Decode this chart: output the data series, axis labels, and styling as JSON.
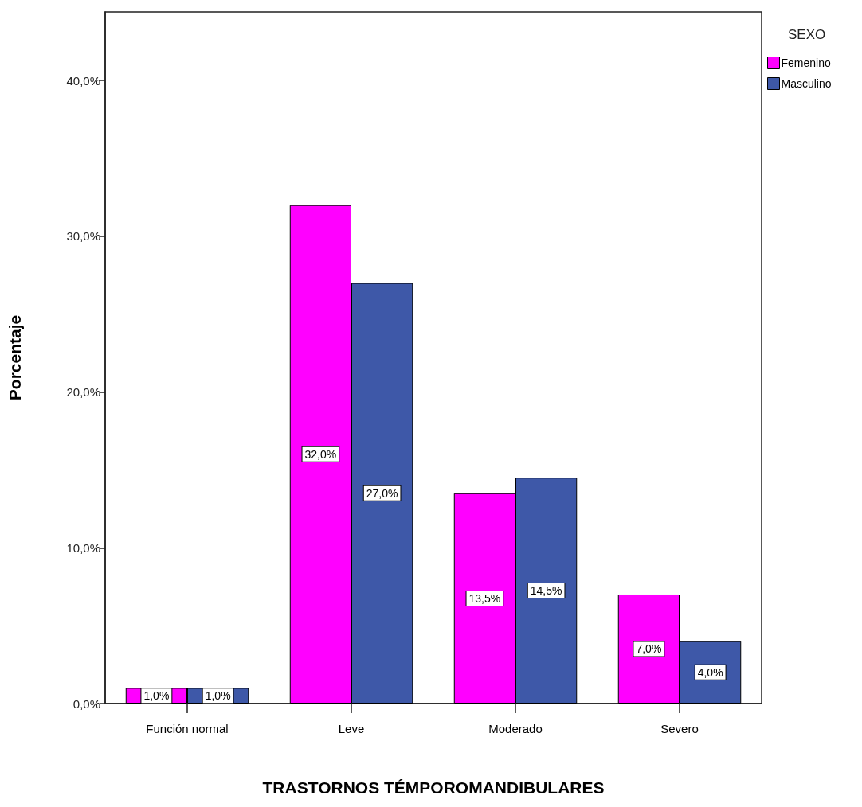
{
  "chart_data": {
    "type": "bar",
    "xlabel": "TRASTORNOS TÉMPOROMANDIBULARES",
    "ylabel": "Porcentaje",
    "legend_title": "SEXO",
    "legend": "top right",
    "categories": [
      "Función normal",
      "Leve",
      "Moderado",
      "Severo"
    ],
    "series": [
      {
        "name": "Femenino",
        "color": "#ff00ff",
        "values": [
          1.0,
          32.0,
          13.5,
          7.0
        ],
        "value_labels": [
          "1,0%",
          "32,0%",
          "13,5%",
          "7,0%"
        ]
      },
      {
        "name": "Masculino",
        "color": "#3e58a8",
        "values": [
          1.0,
          27.0,
          14.5,
          4.0
        ],
        "value_labels": [
          "1,0%",
          "27,0%",
          "14,5%",
          "4,0%"
        ]
      }
    ],
    "ylim": [
      0,
      44.4
    ],
    "yticks": [
      {
        "value": 0,
        "label": "0,0%"
      },
      {
        "value": 10,
        "label": "10,0%"
      },
      {
        "value": 20,
        "label": "20,0%"
      },
      {
        "value": 30,
        "label": "30,0%"
      },
      {
        "value": 40,
        "label": "40,0%"
      }
    ]
  }
}
